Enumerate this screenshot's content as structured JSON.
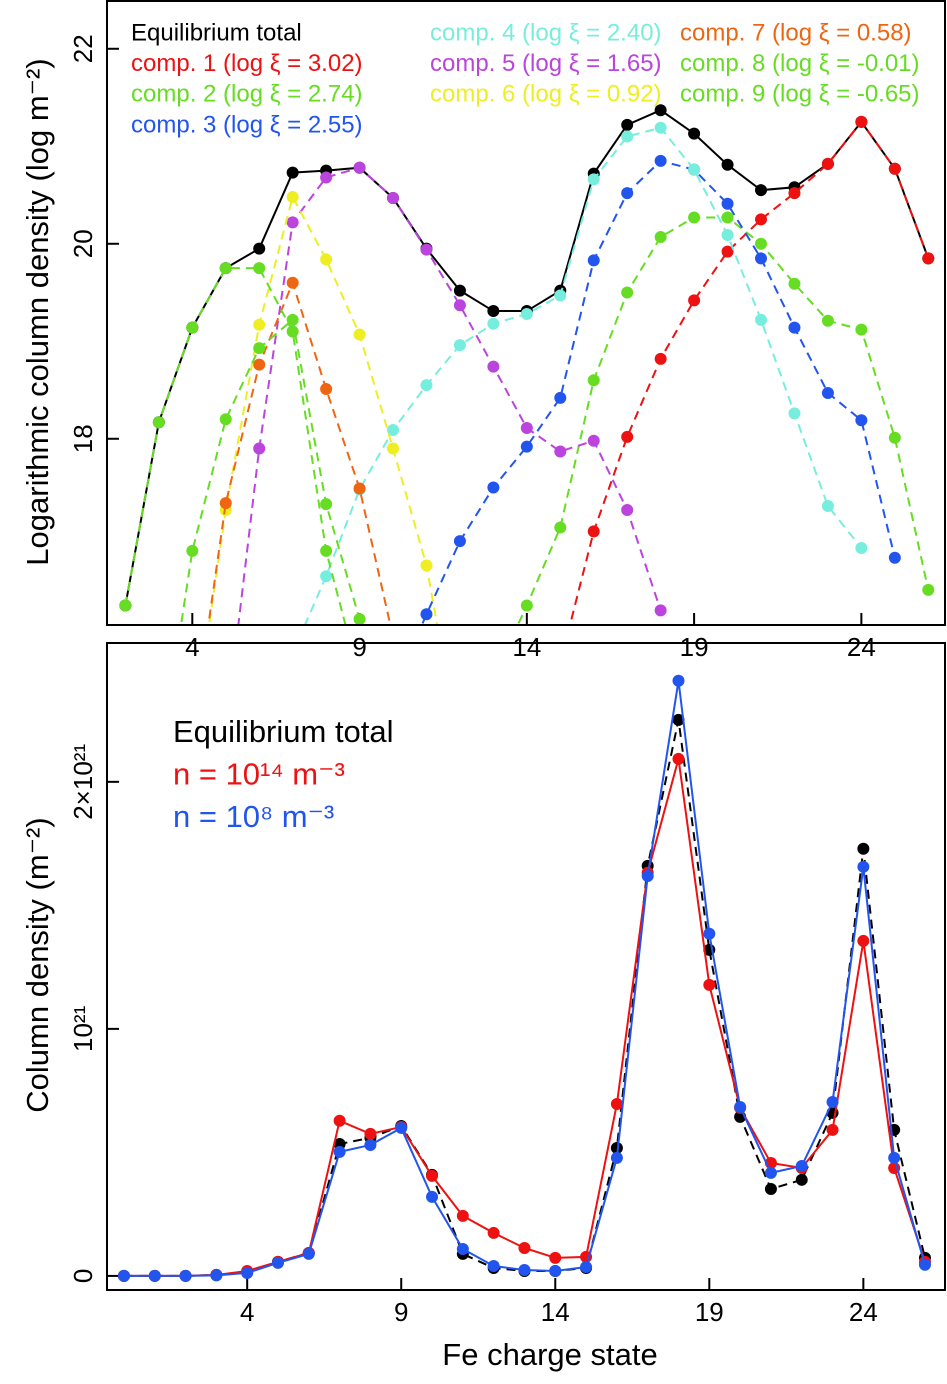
{
  "chart_data": [
    {
      "type": "line",
      "ylabel": "Logarithmic column density (log m⁻²)",
      "x": [
        2,
        3,
        4,
        5,
        6,
        7,
        8,
        9,
        10,
        11,
        12,
        13,
        14,
        15,
        16,
        17,
        18,
        19,
        20,
        21,
        22,
        23,
        24,
        25,
        26
      ],
      "xlim": [
        1.45,
        26.5
      ],
      "xticks": [
        4,
        9,
        14,
        19,
        24
      ],
      "ylim": [
        16.09,
        22.49
      ],
      "yticks": [
        18,
        20,
        22
      ],
      "series": [
        {
          "name": "Equilibrium total",
          "color": "#000000",
          "dashed": false,
          "values": [
            16.29,
            18.17,
            19.14,
            19.75,
            19.95,
            20.73,
            20.75,
            20.78,
            20.47,
            19.95,
            19.52,
            19.31,
            19.31,
            19.52,
            20.72,
            21.22,
            21.37,
            21.13,
            20.81,
            20.55,
            20.58,
            20.82,
            21.25,
            20.77,
            19.85
          ]
        },
        {
          "name": "comp. 1 (log ξ = 3.02)",
          "color": "#ee1111",
          "dashed": true,
          "values": [
            null,
            null,
            null,
            null,
            null,
            null,
            null,
            null,
            null,
            null,
            null,
            null,
            null,
            15.7,
            17.05,
            18.02,
            18.82,
            19.42,
            19.92,
            20.25,
            20.52,
            20.82,
            21.25,
            20.77,
            19.85
          ]
        },
        {
          "name": "comp. 2 (log ξ = 2.74)",
          "color": "#66dd22",
          "dashed": true,
          "values": [
            null,
            null,
            null,
            null,
            null,
            null,
            null,
            null,
            null,
            null,
            null,
            15.55,
            16.29,
            17.09,
            18.6,
            19.5,
            20.07,
            20.27,
            20.27,
            20.0,
            19.59,
            19.21,
            19.12,
            18.01,
            16.45
          ]
        },
        {
          "name": "comp. 3 (log ξ = 2.55)",
          "color": "#2255ee",
          "dashed": true,
          "values": [
            null,
            null,
            null,
            null,
            null,
            null,
            null,
            null,
            15.4,
            16.2,
            16.95,
            17.5,
            17.92,
            18.42,
            19.83,
            20.52,
            20.85,
            20.76,
            20.41,
            19.85,
            19.14,
            18.47,
            18.19,
            16.78,
            null
          ]
        },
        {
          "name": "comp. 4 (log ξ = 2.40)",
          "color": "#77eedd",
          "dashed": true,
          "values": [
            null,
            null,
            null,
            null,
            null,
            15.8,
            16.59,
            17.48,
            18.09,
            18.55,
            18.96,
            19.18,
            19.28,
            19.47,
            20.66,
            21.1,
            21.19,
            20.76,
            20.09,
            19.22,
            18.26,
            17.31,
            16.88,
            null,
            null
          ]
        },
        {
          "name": "comp. 5 (log ξ = 1.65)",
          "color": "#bb44dd",
          "dashed": true,
          "values": [
            null,
            null,
            null,
            15.0,
            17.9,
            20.22,
            20.68,
            20.78,
            20.47,
            19.94,
            19.37,
            18.74,
            18.11,
            17.87,
            17.98,
            17.27,
            16.24,
            null,
            null,
            null,
            null,
            null,
            null,
            null,
            null
          ]
        },
        {
          "name": "comp. 6 (log ξ = 0.92)",
          "color": "#eeee22",
          "dashed": true,
          "values": [
            null,
            null,
            14.9,
            17.27,
            19.17,
            20.48,
            19.84,
            19.07,
            17.9,
            16.7,
            14.8,
            null,
            null,
            null,
            null,
            null,
            null,
            null,
            null,
            null,
            null,
            null,
            null,
            null,
            null
          ]
        },
        {
          "name": "comp. 7 (log ξ = 0.58)",
          "color": "#ee6611",
          "dashed": true,
          "values": [
            null,
            null,
            14.94,
            17.34,
            18.76,
            19.6,
            18.51,
            17.49,
            15.97,
            null,
            null,
            null,
            null,
            null,
            null,
            null,
            null,
            null,
            null,
            null,
            null,
            null,
            null,
            null,
            null
          ]
        },
        {
          "name": "comp. 8 (log ξ = -0.01)",
          "color": "#66dd22",
          "dashed": true,
          "values": [
            null,
            14.6,
            16.85,
            18.2,
            18.93,
            19.22,
            17.33,
            16.15,
            15.0,
            null,
            null,
            null,
            null,
            null,
            null,
            null,
            null,
            null,
            null,
            null,
            null,
            null,
            null,
            null,
            null
          ]
        },
        {
          "name": "comp. 9 (log ξ = -0.65)",
          "color": "#66dd22",
          "dashed": true,
          "values": [
            16.29,
            18.17,
            19.14,
            19.75,
            19.75,
            19.1,
            16.85,
            15.54,
            null,
            null,
            null,
            null,
            null,
            null,
            null,
            null,
            null,
            null,
            null,
            null,
            null,
            null,
            null,
            null,
            null
          ]
        }
      ]
    },
    {
      "type": "line",
      "xlabel": "Fe charge state",
      "ylabel": "Column density (m⁻²)",
      "x": [
        0,
        1,
        2,
        3,
        4,
        5,
        6,
        7,
        8,
        9,
        10,
        11,
        12,
        13,
        14,
        15,
        16,
        17,
        18,
        19,
        20,
        21,
        22,
        23,
        24,
        25,
        26
      ],
      "xlim": [
        -0.55,
        26.65
      ],
      "xticks": [
        4,
        9,
        14,
        19,
        24
      ],
      "ylim": [
        -5.7e+19,
        2.562e+21
      ],
      "yticks": [
        0,
        {
          "value": 1e+21,
          "label": "10²¹"
        },
        {
          "value": 2e+21,
          "label": "2×10²¹"
        }
      ],
      "series": [
        {
          "name": "Equilibrium total",
          "color": "#000000",
          "dashed": true,
          "values": [
            0,
            0,
            0,
            4e+18,
            1.6e+19,
            5.7e+19,
            9.3e+19,
            5.34e+20,
            5.59e+20,
            6.07e+20,
            4.09e+20,
            8.9e+19,
            3.2e+19,
            2e+19,
            2e+19,
            3.2e+19,
            5.18e+20,
            1.66e+21,
            2.251e+21,
            1.32e+21,
            6.44e+20,
            3.52e+20,
            3.89e+20,
            6.6e+20,
            1.729e+21,
            5.91e+20,
            7.3e+19
          ]
        },
        {
          "name": "n = 10¹⁴ m⁻³",
          "color": "#ee1111",
          "dashed": false,
          "values": [
            0,
            0,
            0,
            4e+18,
            2e+19,
            5.7e+19,
            9.3e+19,
            6.28e+20,
            5.75e+20,
            6.03e+20,
            4.05e+20,
            2.43e+20,
            1.74e+20,
            1.13e+20,
            7.3e+19,
            7.7e+19,
            6.96e+20,
            1.632e+21,
            2.093e+21,
            1.178e+21,
            6.8e+20,
            4.57e+20,
            4.37e+20,
            5.91e+20,
            1.356e+21,
            4.37e+20,
            5.7e+19
          ]
        },
        {
          "name": "n = 10⁸ m⁻³",
          "color": "#2255ee",
          "dashed": false,
          "values": [
            0,
            0,
            0,
            2e+18,
            1.2e+19,
            5.3e+19,
            8.9e+19,
            5.02e+20,
            5.3e+20,
            5.99e+20,
            3.2e+20,
            1.09e+20,
            4e+19,
            2.4e+19,
            2e+19,
            3.6e+19,
            4.78e+20,
            1.619e+21,
            2.409e+21,
            1.385e+21,
            6.84e+20,
            4.17e+20,
            4.45e+20,
            7.04e+20,
            1.656e+21,
            4.78e+20,
            4.5e+19
          ]
        }
      ]
    }
  ]
}
